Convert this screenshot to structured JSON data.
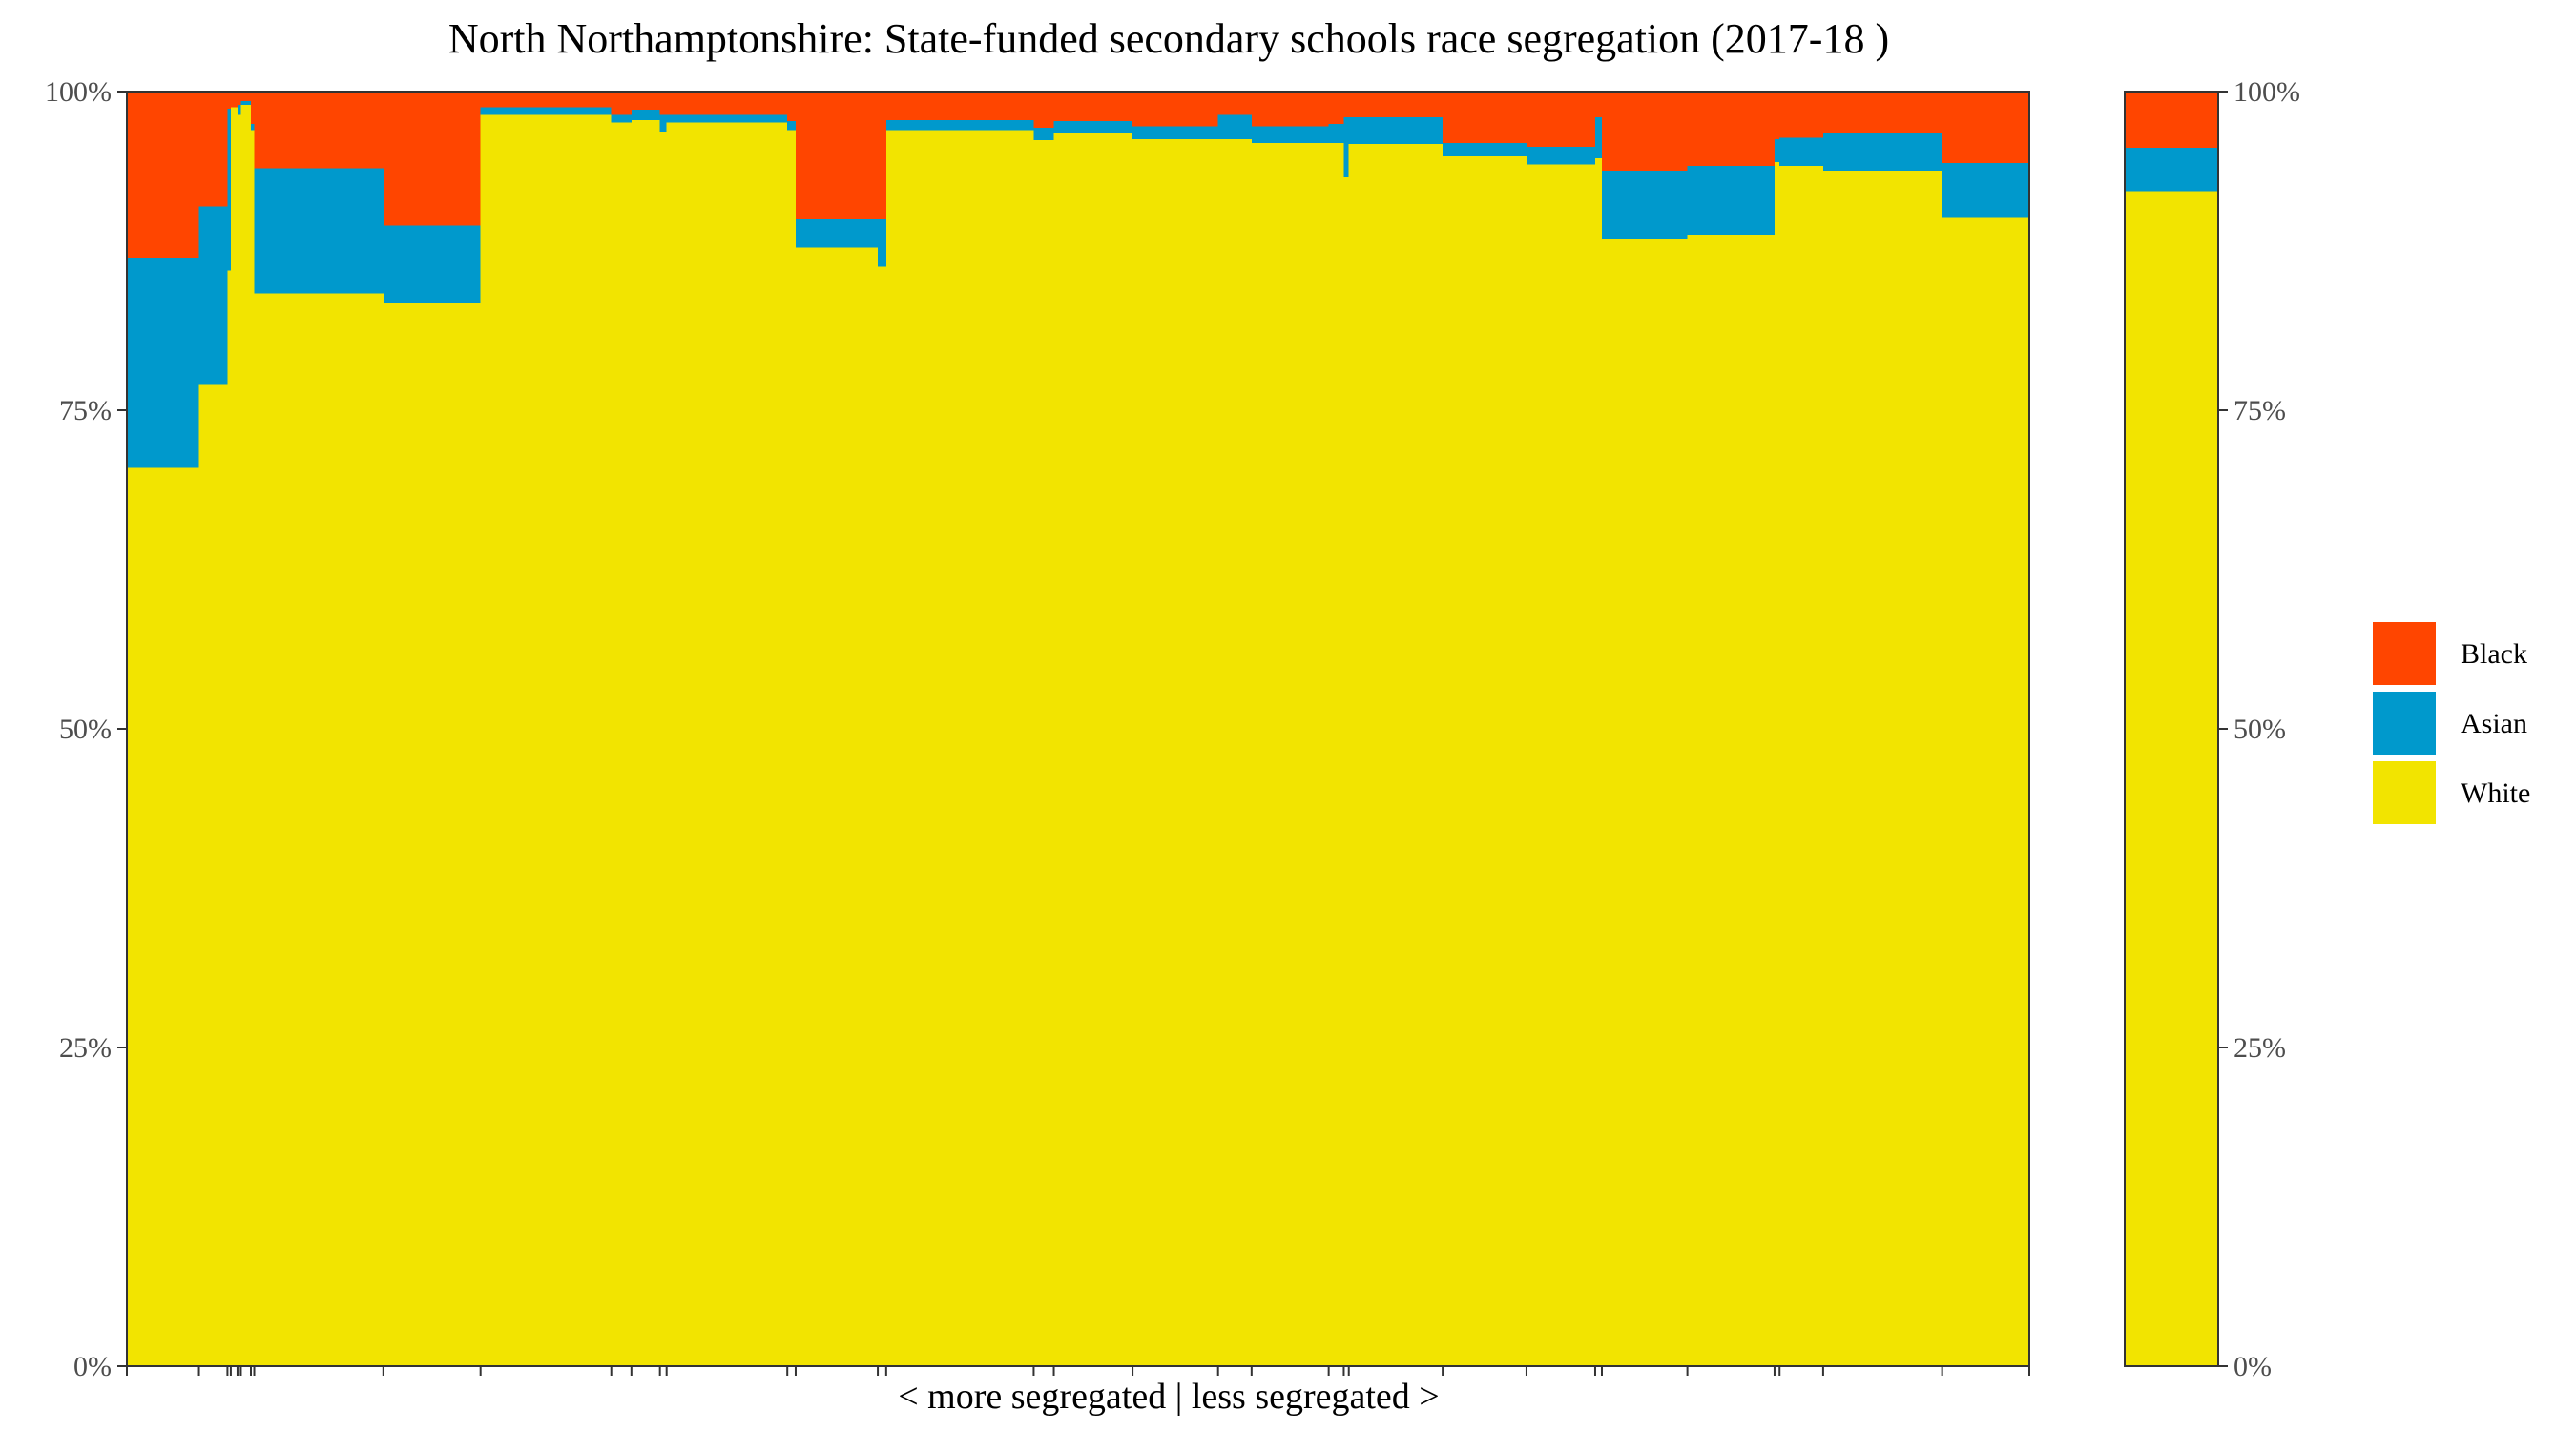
{
  "chart_data": {
    "type": "stacked-bar (variable width, marimekko)",
    "title": "North Northamptonshire: State-funded secondary schools race segregation (2017-18 )",
    "xlabel": "< more segregated | less segregated >",
    "ylabel": "",
    "ylim": [
      0,
      100
    ],
    "y_ticks": [
      "0%",
      "25%",
      "50%",
      "75%",
      "100%"
    ],
    "y_axis_both_sides": true,
    "grid": false,
    "legend_position": "right",
    "series_order_bottom_to_top": [
      "White",
      "Asian",
      "Black"
    ],
    "colors": {
      "Black": "#FF4500",
      "Asian": "#0099CC",
      "White": "#F2E400"
    },
    "legend": [
      {
        "name": "Black",
        "color": "#FF4500"
      },
      {
        "name": "Asian",
        "color": "#0099CC"
      },
      {
        "name": "White",
        "color": "#F2E400"
      }
    ],
    "schools": [
      {
        "width": 43,
        "White": 70.5,
        "Asian": 16.5,
        "Black": 13.0
      },
      {
        "width": 17,
        "White": 77.0,
        "Asian": 14.0,
        "Black": 9.0
      },
      {
        "width": 2,
        "White": 86.0,
        "Asian": 12.7,
        "Black": 1.3
      },
      {
        "width": 4,
        "White": 98.8,
        "Asian": 0.0,
        "Black": 1.2
      },
      {
        "width": 2,
        "White": 98.2,
        "Asian": 0.8,
        "Black": 1.0
      },
      {
        "width": 6,
        "White": 99.0,
        "Asian": 0.3,
        "Black": 0.7
      },
      {
        "width": 2,
        "White": 97.0,
        "Asian": 0.5,
        "Black": 2.5
      },
      {
        "width": 77,
        "White": 84.2,
        "Asian": 9.8,
        "Black": 6.0
      },
      {
        "width": 58,
        "White": 83.4,
        "Asian": 6.1,
        "Black": 10.5
      },
      {
        "width": 78,
        "White": 98.2,
        "Asian": 0.6,
        "Black": 1.2
      },
      {
        "width": 12,
        "White": 97.6,
        "Asian": 0.6,
        "Black": 1.8
      },
      {
        "width": 17,
        "White": 97.8,
        "Asian": 0.8,
        "Black": 1.4
      },
      {
        "width": 4,
        "White": 96.9,
        "Asian": 1.3,
        "Black": 1.8
      },
      {
        "width": 72,
        "White": 97.6,
        "Asian": 0.6,
        "Black": 1.8
      },
      {
        "width": 5,
        "White": 97.0,
        "Asian": 0.7,
        "Black": 2.3
      },
      {
        "width": 49,
        "White": 87.8,
        "Asian": 2.2,
        "Black": 10.0
      },
      {
        "width": 5,
        "White": 86.3,
        "Asian": 3.7,
        "Black": 10.0
      },
      {
        "width": 88,
        "White": 97.0,
        "Asian": 0.8,
        "Black": 2.2
      },
      {
        "width": 12,
        "White": 96.2,
        "Asian": 1.0,
        "Black": 2.8
      },
      {
        "width": 47,
        "White": 96.8,
        "Asian": 0.9,
        "Black": 2.3
      },
      {
        "width": 51,
        "White": 96.3,
        "Asian": 1.0,
        "Black": 2.7
      },
      {
        "width": 20,
        "White": 96.3,
        "Asian": 1.9,
        "Black": 1.8
      },
      {
        "width": 46,
        "White": 96.0,
        "Asian": 1.3,
        "Black": 2.7
      },
      {
        "width": 9,
        "White": 96.0,
        "Asian": 1.5,
        "Black": 2.5
      },
      {
        "width": 3,
        "White": 93.3,
        "Asian": 4.7,
        "Black": 2.0
      },
      {
        "width": 56,
        "White": 95.9,
        "Asian": 2.1,
        "Black": 2.0
      },
      {
        "width": 50,
        "White": 95.0,
        "Asian": 1.0,
        "Black": 4.0
      },
      {
        "width": 41,
        "White": 94.3,
        "Asian": 1.4,
        "Black": 4.3
      },
      {
        "width": 4,
        "White": 94.8,
        "Asian": 3.2,
        "Black": 2.0
      },
      {
        "width": 51,
        "White": 88.5,
        "Asian": 5.3,
        "Black": 6.2
      },
      {
        "width": 52,
        "White": 88.8,
        "Asian": 5.4,
        "Black": 5.8
      },
      {
        "width": 3,
        "White": 94.5,
        "Asian": 1.8,
        "Black": 3.7
      },
      {
        "width": 26,
        "White": 94.2,
        "Asian": 2.2,
        "Black": 3.6
      },
      {
        "width": 71,
        "White": 93.8,
        "Asian": 3.0,
        "Black": 3.2
      },
      {
        "width": 52,
        "White": 90.2,
        "Asian": 4.2,
        "Black": 5.6
      }
    ],
    "total_bar": {
      "White": 92.2,
      "Asian": 3.4,
      "Black": 4.4
    }
  }
}
